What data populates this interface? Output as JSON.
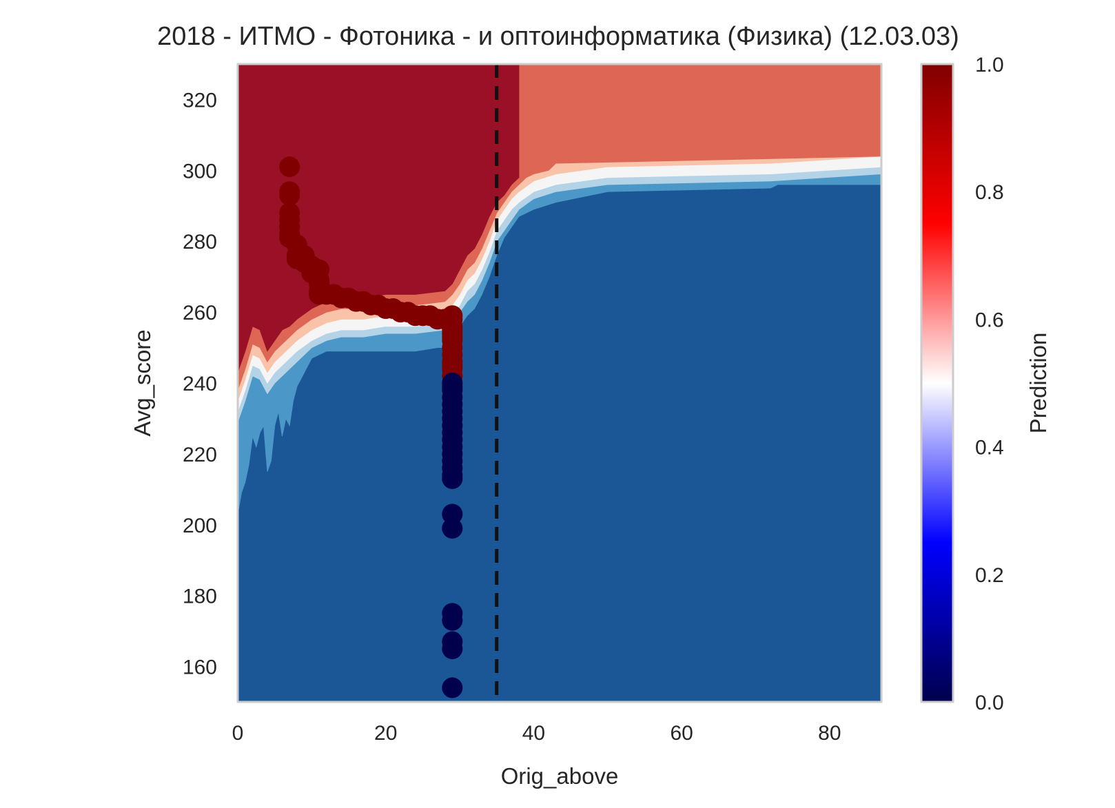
{
  "chart_data": {
    "type": "contour-scatter",
    "title": "2018 - ИТМО - Фотоника -   и оптоинформатика (Физика) (12.03.03)",
    "xlabel": "Orig_above",
    "ylabel": "Avg_score",
    "xlim": [
      0,
      87
    ],
    "ylim": [
      150,
      330
    ],
    "xticks": [
      0,
      20,
      40,
      60,
      80
    ],
    "yticks": [
      160,
      180,
      200,
      220,
      240,
      260,
      280,
      300,
      320
    ],
    "grid": false,
    "threshold_line": {
      "x": 35,
      "style": "dashed",
      "color": "#111111"
    },
    "colorbar": {
      "label": "Prediction",
      "range": [
        0.0,
        1.0
      ],
      "ticks": [
        "0.0",
        "0.2",
        "0.4",
        "0.6",
        "0.8",
        "1.0"
      ],
      "colormap": "seismic",
      "stops": [
        "#00004c",
        "#0000ff",
        "#ffffff",
        "#ff0000",
        "#800000"
      ]
    },
    "contour_levels": [
      {
        "level": 0.9,
        "color": "#9a1127"
      },
      {
        "level": 0.8,
        "color": "#dd6754"
      },
      {
        "level": 0.65,
        "color": "#f9c3aa"
      },
      {
        "level": 0.5,
        "color": "#f5f5f5"
      },
      {
        "level": 0.4,
        "color": "#b4d3e7"
      },
      {
        "level": 0.3,
        "color": "#4b98c8"
      },
      {
        "level": 0.0,
        "color": "#1b5796"
      }
    ],
    "boundary": [
      {
        "level": 0.9,
        "x": [
          0,
          1,
          2,
          3,
          4,
          5,
          6,
          7,
          8,
          10,
          12,
          14,
          17,
          20,
          24,
          28,
          29,
          30,
          31,
          32,
          33,
          34,
          35,
          36,
          37,
          38,
          38,
          39,
          40,
          42,
          43,
          43,
          87
        ],
        "y": [
          243,
          249,
          256,
          255,
          249,
          252,
          255,
          256,
          258,
          261,
          263,
          264,
          264,
          265,
          265,
          266,
          268,
          272,
          276,
          278,
          282,
          287,
          291,
          293,
          296,
          298,
          330,
          330,
          330,
          330,
          330,
          330,
          330
        ]
      },
      {
        "level": 0.8,
        "x": [
          0,
          1,
          2,
          3,
          4,
          5,
          6,
          7,
          8,
          10,
          12,
          14,
          17,
          20,
          24,
          28,
          29,
          30,
          31,
          32,
          33,
          34,
          35,
          36,
          37,
          38,
          39,
          40,
          42,
          43,
          87
        ],
        "y": [
          238,
          244,
          251,
          250,
          246,
          249,
          251,
          253,
          255,
          258,
          260,
          261,
          261,
          262,
          262,
          263,
          265,
          268,
          272,
          274,
          278,
          283,
          288,
          291,
          294,
          296,
          298,
          299,
          300,
          302,
          304
        ]
      },
      {
        "level": 0.65,
        "x": [
          0,
          1,
          2,
          3,
          4,
          5,
          6,
          7,
          8,
          10,
          12,
          14,
          17,
          20,
          24,
          28,
          29,
          30,
          31,
          32,
          33,
          34,
          35,
          36,
          37,
          38,
          40,
          43,
          50,
          72,
          87
        ],
        "y": [
          235,
          241,
          248,
          247,
          243,
          246,
          248,
          250,
          252,
          255,
          257,
          258,
          258,
          259,
          259,
          260,
          262,
          265,
          269,
          271,
          275,
          280,
          286,
          289,
          292,
          294,
          297,
          299,
          301,
          302,
          304
        ]
      },
      {
        "level": 0.5,
        "x": [
          0,
          1,
          2,
          3,
          4,
          5,
          6,
          7,
          8,
          10,
          12,
          14,
          17,
          20,
          24,
          28,
          29,
          30,
          31,
          32,
          33,
          34,
          35,
          36,
          37,
          38,
          40,
          43,
          50,
          72,
          87
        ],
        "y": [
          232,
          238,
          245,
          244,
          240,
          243,
          245,
          247,
          249,
          252,
          254,
          255,
          255,
          256,
          256,
          257,
          259,
          262,
          266,
          268,
          272,
          277,
          283,
          286,
          289,
          291,
          294,
          296,
          298,
          299,
          301
        ]
      },
      {
        "level": 0.4,
        "x": [
          0,
          1,
          2,
          3,
          4,
          5,
          6,
          7,
          8,
          10,
          12,
          14,
          17,
          20,
          24,
          28,
          29,
          30,
          31,
          32,
          33,
          34,
          35,
          36,
          37,
          38,
          40,
          43,
          50,
          72,
          87
        ],
        "y": [
          229,
          235,
          242,
          241,
          237,
          240,
          242,
          244,
          246,
          250,
          252,
          253,
          253,
          254,
          254,
          255,
          257,
          260,
          263,
          265,
          269,
          274,
          280,
          283,
          286,
          289,
          292,
          294,
          296,
          297,
          299
        ]
      },
      {
        "level": 0.3,
        "x": [
          0,
          0.5,
          1,
          1.5,
          2,
          2.5,
          3,
          3.5,
          4,
          4.5,
          5,
          5.5,
          6,
          6.5,
          7,
          7.5,
          8,
          10,
          12,
          14,
          17,
          20,
          24,
          27,
          28,
          29,
          30,
          31,
          32,
          33,
          34,
          35,
          36,
          37,
          38,
          40,
          43,
          50,
          72,
          73,
          87
        ],
        "y": [
          203,
          209,
          212,
          217,
          225,
          222,
          226,
          228,
          215,
          218,
          228,
          232,
          225,
          230,
          228,
          235,
          239,
          247,
          249,
          249,
          249,
          249,
          249,
          250,
          250,
          252,
          256,
          259,
          261,
          265,
          270,
          276,
          281,
          284,
          287,
          289,
          291,
          294,
          295,
          296,
          296
        ]
      }
    ],
    "scatter": {
      "positive_color": "#800000",
      "negative_color": "#00004c",
      "positive": {
        "x": [
          7,
          7,
          7,
          7,
          7,
          7,
          7,
          7,
          8,
          8,
          8,
          9,
          9,
          10,
          10,
          11,
          11,
          11,
          11,
          11,
          12,
          13,
          14,
          15,
          16,
          17,
          18,
          19,
          20,
          21,
          22,
          23,
          24,
          25,
          26,
          27,
          28,
          29,
          29,
          29,
          29,
          29,
          29,
          29,
          29,
          29,
          29,
          29,
          29,
          29
        ],
        "y": [
          301,
          294,
          293,
          288,
          286,
          284,
          282,
          281,
          279,
          276,
          275,
          276,
          274,
          273,
          271,
          272,
          269,
          268,
          266,
          265,
          265,
          265,
          264,
          264,
          263,
          263,
          262,
          262,
          261,
          261,
          260,
          260,
          259,
          259,
          259,
          258,
          258,
          258,
          256,
          254,
          252,
          250,
          248,
          246,
          244,
          242,
          259,
          255,
          253,
          245
        ]
      },
      "negative": {
        "x": [
          29,
          29,
          29,
          29,
          29,
          29,
          29,
          29,
          29,
          29,
          29,
          29,
          29,
          29,
          29,
          29,
          29,
          29,
          29,
          29,
          29,
          29,
          29
        ],
        "y": [
          240,
          238,
          236,
          234,
          232,
          230,
          228,
          226,
          224,
          222,
          220,
          218,
          216,
          214,
          213,
          203,
          199,
          175,
          173,
          167,
          165,
          154,
          239
        ]
      }
    }
  }
}
